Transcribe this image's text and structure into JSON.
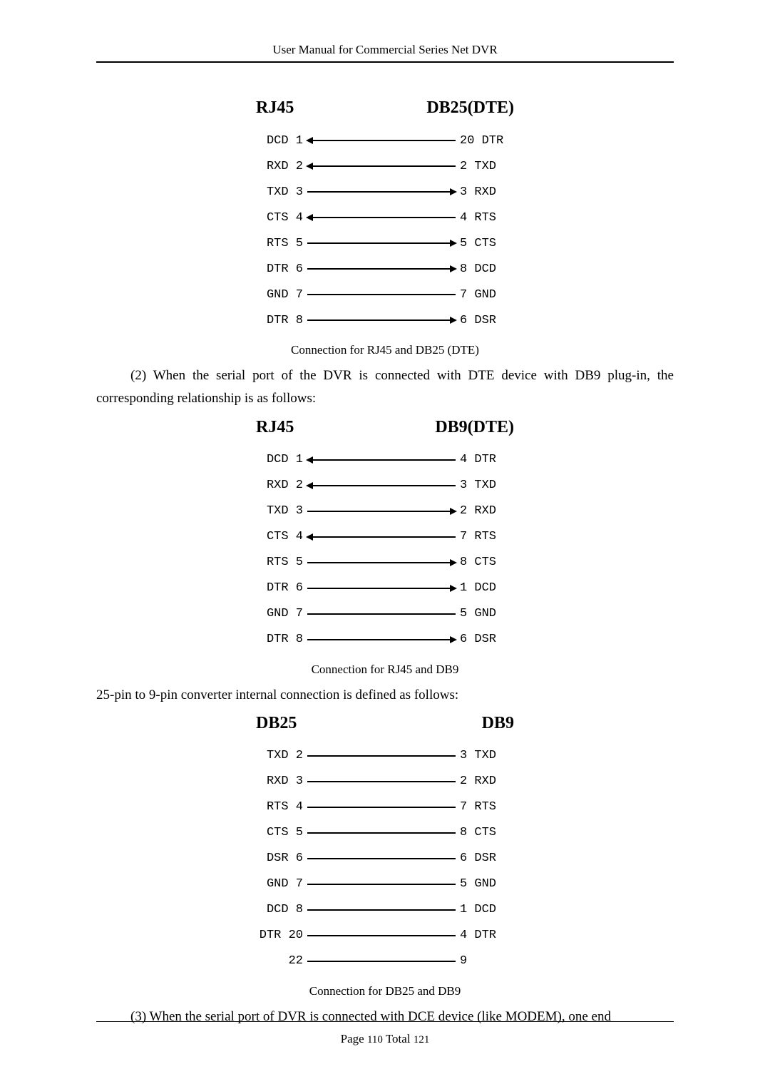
{
  "header": "User Manual for Commercial Series Net DVR",
  "diagram1": {
    "left_title": "RJ45",
    "right_title": "DB25(DTE)",
    "caption": "Connection for RJ45 and DB25 (DTE)",
    "rows": [
      {
        "l": "DCD 1",
        "r": "20 DTR",
        "dir": "left"
      },
      {
        "l": "RXD 2",
        "r": "2 TXD",
        "dir": "left"
      },
      {
        "l": "TXD 3",
        "r": "3 RXD",
        "dir": "right"
      },
      {
        "l": "CTS 4",
        "r": "4 RTS",
        "dir": "left"
      },
      {
        "l": "RTS 5",
        "r": "5 CTS",
        "dir": "right"
      },
      {
        "l": "DTR 6",
        "r": "8 DCD",
        "dir": "right"
      },
      {
        "l": "GND 7",
        "r": "7 GND",
        "dir": "none"
      },
      {
        "l": "DTR 8",
        "r": "6 DSR",
        "dir": "right"
      }
    ]
  },
  "para1": "(2) When the serial port of the DVR is connected with DTE device with DB9 plug-in, the corresponding relationship is as follows:",
  "diagram2": {
    "left_title": "RJ45",
    "right_title": "DB9(DTE)",
    "caption": "Connection for RJ45 and DB9",
    "rows": [
      {
        "l": "DCD 1",
        "r": "4 DTR",
        "dir": "left"
      },
      {
        "l": "RXD 2",
        "r": "3 TXD",
        "dir": "left"
      },
      {
        "l": "TXD 3",
        "r": "2 RXD",
        "dir": "right"
      },
      {
        "l": "CTS 4",
        "r": "7 RTS",
        "dir": "left"
      },
      {
        "l": "RTS 5",
        "r": "8 CTS",
        "dir": "right"
      },
      {
        "l": "DTR 6",
        "r": "1 DCD",
        "dir": "right"
      },
      {
        "l": "GND 7",
        "r": "5 GND",
        "dir": "none"
      },
      {
        "l": "DTR 8",
        "r": "6 DSR",
        "dir": "right"
      }
    ]
  },
  "para2": "25-pin to 9-pin converter internal connection is defined as follows:",
  "diagram3": {
    "left_title": "DB25",
    "right_title": "DB9",
    "caption": "Connection for DB25 and DB9",
    "rows": [
      {
        "l": "TXD 2",
        "r": "3 TXD",
        "dir": "none"
      },
      {
        "l": "RXD 3",
        "r": "2 RXD",
        "dir": "none"
      },
      {
        "l": "RTS 4",
        "r": "7 RTS",
        "dir": "none"
      },
      {
        "l": "CTS 5",
        "r": "8 CTS",
        "dir": "none"
      },
      {
        "l": "DSR 6",
        "r": "6 DSR",
        "dir": "none"
      },
      {
        "l": "GND 7",
        "r": "5 GND",
        "dir": "none"
      },
      {
        "l": "DCD 8",
        "r": "1 DCD",
        "dir": "none"
      },
      {
        "l": "DTR 20",
        "r": "4 DTR",
        "dir": "none"
      },
      {
        "l": "22",
        "r": "9",
        "dir": "none"
      }
    ]
  },
  "para3": "(3) When the serial port of DVR is connected with DCE device (like MODEM), one end",
  "footer": {
    "prefix": "Page ",
    "page": "110",
    "mid": " Total ",
    "total": "121"
  }
}
